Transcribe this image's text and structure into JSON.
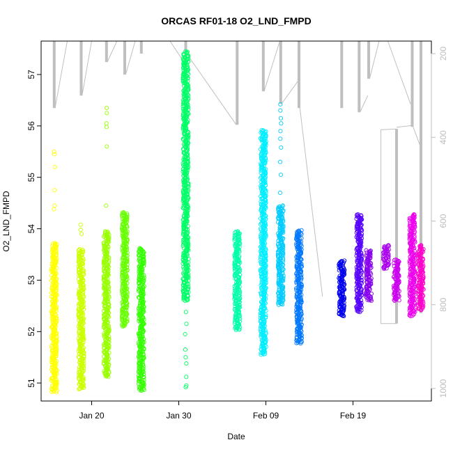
{
  "chart_data": {
    "type": "scatter",
    "title": "ORCAS RF01-18 O2_LND_FMPD",
    "xlabel": "Date",
    "ylabel": "O2_LND_FMPD",
    "x_tick_labels": [
      "Jan 20",
      "Jan 30",
      "Feb 09",
      "Feb 19"
    ],
    "x_tick_days": [
      20,
      30,
      40,
      50
    ],
    "xlim_days": [
      14.2,
      59.0
    ],
    "y_ticks": [
      51,
      52,
      53,
      54,
      55,
      56,
      57
    ],
    "ylim": [
      50.65,
      57.65
    ],
    "y2_ticks": [
      200,
      400,
      600,
      800,
      1000
    ],
    "y2lim": [
      1030,
      170
    ],
    "y2_color": "#bdbdbd",
    "altitude_color": "#bfbfbf",
    "grid": false,
    "legend": "none",
    "series": [
      {
        "color": "#ffff00",
        "x": 15.7,
        "y_min": 50.82,
        "y_max": 53.72,
        "outliers": [
          55.5,
          55.45,
          55.2,
          54.75,
          54.45,
          54.38
        ]
      },
      {
        "color": "#ccff00",
        "x": 18.8,
        "y_min": 50.88,
        "y_max": 53.6,
        "outliers": [
          54.08,
          53.98,
          53.9
        ]
      },
      {
        "color": "#99ff00",
        "x": 21.7,
        "y_min": 51.12,
        "y_max": 53.95,
        "outliers": [
          56.35,
          56.25,
          56.05,
          55.98,
          55.6,
          54.45
        ]
      },
      {
        "color": "#66ff00",
        "x": 23.8,
        "y_min": 52.1,
        "y_max": 54.32,
        "outliers": []
      },
      {
        "color": "#33ff00",
        "x": 25.7,
        "y_min": 50.85,
        "y_max": 53.62,
        "outliers": [
          53.38
        ]
      },
      {
        "color": "#00ff66",
        "x": 30.8,
        "y_min": 52.6,
        "y_max": 57.45,
        "outliers": [
          52.38,
          52.15,
          51.95,
          51.65,
          51.5,
          51.38,
          51.12,
          50.95,
          50.92
        ]
      },
      {
        "color": "#00ffaa",
        "x": 36.7,
        "y_min": 52.03,
        "y_max": 53.95,
        "outliers": []
      },
      {
        "color": "#00eeff",
        "x": 39.7,
        "y_min": 51.55,
        "y_max": 55.92,
        "outliers": [
          51.62
        ]
      },
      {
        "color": "#00ccff",
        "x": 41.7,
        "y_min": 52.52,
        "y_max": 54.45,
        "outliers": [
          56.42,
          56.3,
          56.15,
          56.05,
          55.9,
          55.75,
          55.58,
          55.3,
          55.05,
          54.7
        ]
      },
      {
        "color": "#0077ff",
        "x": 43.8,
        "y_min": 51.77,
        "y_max": 53.97,
        "outliers": []
      },
      {
        "color": "#0000ee",
        "x": 48.7,
        "y_min": 52.3,
        "y_max": 53.38,
        "outliers": []
      },
      {
        "color": "#5500ff",
        "x": 50.7,
        "y_min": 52.38,
        "y_max": 54.28,
        "outliers": []
      },
      {
        "color": "#8800ee",
        "x": 51.8,
        "y_min": 52.6,
        "y_max": 53.58,
        "outliers": []
      },
      {
        "color": "#aa00ee",
        "x": 53.8,
        "y_min": 53.22,
        "y_max": 53.68,
        "outliers": []
      },
      {
        "color": "#cc00ee",
        "x": 55.0,
        "y_min": 52.6,
        "y_max": 53.4,
        "outliers": []
      },
      {
        "color": "#ee00ee",
        "x": 56.8,
        "y_min": 52.3,
        "y_max": 54.28,
        "outliers": []
      },
      {
        "color": "#ff00cc",
        "x": 57.8,
        "y_min": 52.42,
        "y_max": 53.68,
        "outliers": []
      }
    ],
    "altitude_profiles": [
      {
        "x": 15.7,
        "top": 170,
        "bottom": 330
      },
      {
        "x": 18.8,
        "top": 170,
        "bottom": 300
      },
      {
        "x": 21.7,
        "top": 170,
        "bottom": 220
      },
      {
        "x": 23.8,
        "top": 170,
        "bottom": 250
      },
      {
        "x": 25.7,
        "top": 170,
        "bottom": 200
      },
      {
        "x": 30.8,
        "top": 170,
        "bottom": 290
      },
      {
        "x": 36.7,
        "top": 170,
        "bottom": 370
      },
      {
        "x": 39.7,
        "top": 170,
        "bottom": 290
      },
      {
        "x": 41.7,
        "top": 170,
        "bottom": 320
      },
      {
        "x": 43.8,
        "top": 170,
        "bottom": 330
      },
      {
        "x": 48.7,
        "top": 170,
        "bottom": 330
      },
      {
        "x": 50.7,
        "top": 170,
        "bottom": 340
      },
      {
        "x": 51.8,
        "top": 170,
        "bottom": 260
      },
      {
        "x": 55.0,
        "top": 380,
        "bottom": 845
      },
      {
        "x": 56.8,
        "top": 170,
        "bottom": 375
      },
      {
        "x": 57.8,
        "top": 170,
        "bottom": 820
      }
    ],
    "altitude_connectors": [
      {
        "x1": 15.8,
        "y1": 330,
        "x2": 17.2,
        "y2": 170
      },
      {
        "x1": 18.9,
        "y1": 300,
        "x2": 20.0,
        "y2": 170
      },
      {
        "x1": 21.8,
        "y1": 220,
        "x2": 22.9,
        "y2": 170
      },
      {
        "x1": 23.9,
        "y1": 250,
        "x2": 25.0,
        "y2": 170
      },
      {
        "x1": 30.9,
        "y1": 230,
        "x2": 29.0,
        "y2": 170
      },
      {
        "x1": 30.9,
        "y1": 200,
        "x2": 36.6,
        "y2": 370
      },
      {
        "x1": 39.8,
        "y1": 290,
        "x2": 41.6,
        "y2": 170
      },
      {
        "x1": 41.8,
        "y1": 320,
        "x2": 43.7,
        "y2": 265
      },
      {
        "x1": 43.9,
        "y1": 330,
        "x2": 46.5,
        "y2": 780
      },
      {
        "x1": 50.8,
        "y1": 340,
        "x2": 51.7,
        "y2": 300
      },
      {
        "x1": 51.9,
        "y1": 260,
        "x2": 53.0,
        "y2": 170
      },
      {
        "x1": 53.2,
        "y1": 382,
        "x2": 55.0,
        "y2": 380
      },
      {
        "x1": 55.0,
        "y1": 376,
        "x2": 56.7,
        "y2": 372
      },
      {
        "x1": 56.9,
        "y1": 375,
        "x2": 57.7,
        "y2": 420
      },
      {
        "x1": 54.0,
        "y1": 170,
        "x2": 56.6,
        "y2": 320
      }
    ]
  }
}
